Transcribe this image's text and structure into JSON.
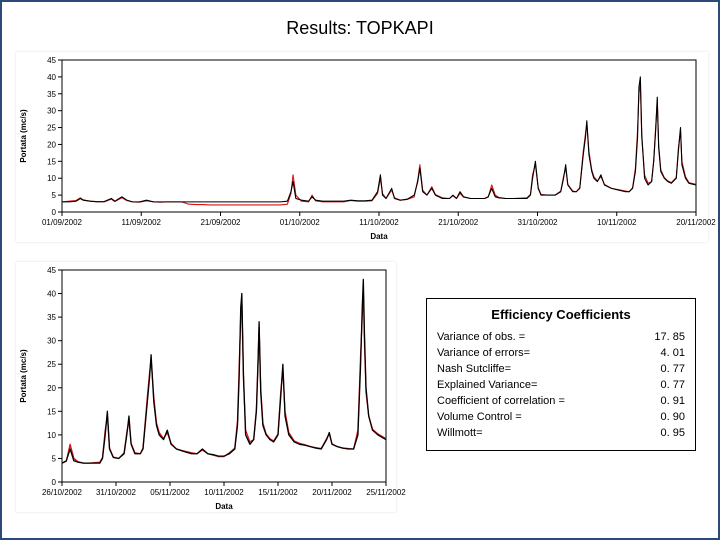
{
  "page": {
    "title": "Results: TOPKAPI"
  },
  "palette": {
    "series_obs": "#000000",
    "series_sim": "#d51414",
    "grid_color": "#000000",
    "plot_border": "#000000",
    "background": "#ffffff"
  },
  "chart_top": {
    "type": "line",
    "ylabel": "Portata (mc/s)",
    "xlabel": "Data",
    "xlim": [
      0,
      9
    ],
    "ylim": [
      0,
      45
    ],
    "ytick_step": 5,
    "xtick_labels": [
      "01/09/2002",
      "11/09/2002",
      "21/09/2002",
      "01/10/2002",
      "11/10/2002",
      "21/10/2002",
      "31/10/2002",
      "10/11/2002",
      "20/11/2002"
    ],
    "line_width": 1.1,
    "series_obs": [
      [
        0.0,
        3
      ],
      [
        0.1,
        3
      ],
      [
        0.2,
        3.2
      ],
      [
        0.26,
        4
      ],
      [
        0.3,
        3.5
      ],
      [
        0.4,
        3.2
      ],
      [
        0.5,
        3
      ],
      [
        0.6,
        3.1
      ],
      [
        0.7,
        4
      ],
      [
        0.75,
        3.2
      ],
      [
        0.85,
        4.5
      ],
      [
        0.92,
        3.5
      ],
      [
        1.0,
        3
      ],
      [
        1.1,
        3
      ],
      [
        1.2,
        3.5
      ],
      [
        1.3,
        3
      ],
      [
        1.4,
        3
      ],
      [
        1.5,
        3
      ],
      [
        1.6,
        3
      ],
      [
        1.7,
        3
      ],
      [
        1.8,
        3
      ],
      [
        1.9,
        3
      ],
      [
        2.0,
        3
      ],
      [
        2.1,
        3
      ],
      [
        2.2,
        3
      ],
      [
        2.3,
        3
      ],
      [
        2.4,
        3
      ],
      [
        2.5,
        3
      ],
      [
        2.6,
        3
      ],
      [
        2.7,
        3
      ],
      [
        2.8,
        3
      ],
      [
        2.9,
        3
      ],
      [
        3.0,
        3
      ],
      [
        3.1,
        3
      ],
      [
        3.2,
        3.2
      ],
      [
        3.25,
        6
      ],
      [
        3.28,
        9
      ],
      [
        3.32,
        4
      ],
      [
        3.4,
        3.5
      ],
      [
        3.5,
        3.2
      ],
      [
        3.55,
        4.5
      ],
      [
        3.6,
        3.5
      ],
      [
        3.7,
        3.2
      ],
      [
        3.8,
        3.2
      ],
      [
        3.9,
        3.2
      ],
      [
        4.0,
        3.2
      ],
      [
        4.1,
        3.5
      ],
      [
        4.2,
        3.3
      ],
      [
        4.3,
        3.3
      ],
      [
        4.4,
        3.5
      ],
      [
        4.48,
        6
      ],
      [
        4.52,
        11
      ],
      [
        4.55,
        5
      ],
      [
        4.6,
        4
      ],
      [
        4.68,
        7
      ],
      [
        4.72,
        4
      ],
      [
        4.8,
        3.5
      ],
      [
        4.9,
        3.8
      ],
      [
        5.0,
        5
      ],
      [
        5.05,
        9
      ],
      [
        5.08,
        13
      ],
      [
        5.12,
        6
      ],
      [
        5.18,
        5
      ],
      [
        5.25,
        7
      ],
      [
        5.3,
        5
      ],
      [
        5.4,
        4
      ],
      [
        5.5,
        4
      ],
      [
        5.55,
        5
      ],
      [
        5.6,
        4
      ],
      [
        5.65,
        6
      ],
      [
        5.7,
        4.5
      ],
      [
        5.8,
        4
      ],
      [
        5.9,
        4
      ],
      [
        6.0,
        4
      ],
      [
        6.05,
        4.5
      ],
      [
        6.1,
        7
      ],
      [
        6.15,
        4.5
      ],
      [
        6.2,
        4.2
      ],
      [
        6.3,
        4
      ],
      [
        6.4,
        4
      ],
      [
        6.5,
        4
      ],
      [
        6.6,
        4
      ],
      [
        6.65,
        5
      ],
      [
        6.68,
        10
      ],
      [
        6.72,
        15
      ],
      [
        6.76,
        7
      ],
      [
        6.8,
        5
      ],
      [
        6.9,
        5
      ],
      [
        7.0,
        5
      ],
      [
        7.08,
        6
      ],
      [
        7.12,
        10
      ],
      [
        7.15,
        14
      ],
      [
        7.18,
        8
      ],
      [
        7.25,
        6
      ],
      [
        7.3,
        6
      ],
      [
        7.35,
        7
      ],
      [
        7.4,
        17
      ],
      [
        7.43,
        22
      ],
      [
        7.45,
        27
      ],
      [
        7.48,
        17
      ],
      [
        7.52,
        12
      ],
      [
        7.55,
        10
      ],
      [
        7.6,
        9
      ],
      [
        7.65,
        11
      ],
      [
        7.7,
        8
      ],
      [
        7.8,
        7
      ],
      [
        7.9,
        6.5
      ],
      [
        8.0,
        6
      ],
      [
        8.05,
        6
      ],
      [
        8.1,
        7
      ],
      [
        8.14,
        12
      ],
      [
        8.17,
        22
      ],
      [
        8.19,
        37
      ],
      [
        8.21,
        40
      ],
      [
        8.23,
        23
      ],
      [
        8.27,
        10
      ],
      [
        8.32,
        8
      ],
      [
        8.37,
        9
      ],
      [
        8.4,
        15
      ],
      [
        8.43,
        25
      ],
      [
        8.45,
        34
      ],
      [
        8.47,
        19
      ],
      [
        8.5,
        12
      ],
      [
        8.55,
        10
      ],
      [
        8.6,
        9
      ],
      [
        8.65,
        8.5
      ],
      [
        8.72,
        10
      ],
      [
        8.75,
        18
      ],
      [
        8.78,
        25
      ],
      [
        8.8,
        14
      ],
      [
        8.85,
        10
      ],
      [
        8.9,
        8.5
      ],
      [
        9.0,
        8
      ]
    ],
    "series_sim": [
      [
        0.0,
        3
      ],
      [
        0.1,
        3.2
      ],
      [
        0.2,
        3.4
      ],
      [
        0.26,
        4.2
      ],
      [
        0.3,
        3.6
      ],
      [
        0.4,
        3.2
      ],
      [
        0.5,
        3.1
      ],
      [
        0.6,
        3
      ],
      [
        0.7,
        3.8
      ],
      [
        0.75,
        3.1
      ],
      [
        0.85,
        4.2
      ],
      [
        0.92,
        3.4
      ],
      [
        1.0,
        3
      ],
      [
        1.1,
        2.9
      ],
      [
        1.2,
        3.3
      ],
      [
        1.3,
        3
      ],
      [
        1.4,
        2.9
      ],
      [
        1.5,
        3
      ],
      [
        1.6,
        3
      ],
      [
        1.7,
        3
      ],
      [
        1.8,
        2.3
      ],
      [
        1.9,
        2.2
      ],
      [
        2.0,
        2.2
      ],
      [
        2.1,
        2.1
      ],
      [
        2.2,
        2.1
      ],
      [
        2.3,
        2.1
      ],
      [
        2.4,
        2.1
      ],
      [
        2.5,
        2.1
      ],
      [
        2.6,
        2.1
      ],
      [
        2.7,
        2.1
      ],
      [
        2.8,
        2.1
      ],
      [
        2.9,
        2.1
      ],
      [
        3.0,
        2.1
      ],
      [
        3.1,
        2.1
      ],
      [
        3.2,
        2.3
      ],
      [
        3.25,
        5.5
      ],
      [
        3.28,
        11
      ],
      [
        3.32,
        5
      ],
      [
        3.4,
        3.2
      ],
      [
        3.5,
        3
      ],
      [
        3.55,
        5
      ],
      [
        3.6,
        3.3
      ],
      [
        3.7,
        3
      ],
      [
        3.8,
        3
      ],
      [
        3.9,
        3
      ],
      [
        4.0,
        3
      ],
      [
        4.1,
        3.4
      ],
      [
        4.2,
        3.2
      ],
      [
        4.3,
        3.2
      ],
      [
        4.4,
        3.3
      ],
      [
        4.48,
        5.5
      ],
      [
        4.52,
        10
      ],
      [
        4.55,
        5.5
      ],
      [
        4.6,
        4
      ],
      [
        4.68,
        6.5
      ],
      [
        4.72,
        4.2
      ],
      [
        4.8,
        3.5
      ],
      [
        4.9,
        3.7
      ],
      [
        5.0,
        4.5
      ],
      [
        5.05,
        9.5
      ],
      [
        5.08,
        14
      ],
      [
        5.12,
        6.5
      ],
      [
        5.18,
        5
      ],
      [
        5.25,
        7.5
      ],
      [
        5.3,
        5.2
      ],
      [
        5.4,
        4.2
      ],
      [
        5.5,
        4
      ],
      [
        5.55,
        4.8
      ],
      [
        5.6,
        4
      ],
      [
        5.65,
        5.5
      ],
      [
        5.7,
        4.4
      ],
      [
        5.8,
        4
      ],
      [
        5.9,
        4
      ],
      [
        6.0,
        4
      ],
      [
        6.05,
        4.4
      ],
      [
        6.1,
        8
      ],
      [
        6.15,
        5
      ],
      [
        6.2,
        4.3
      ],
      [
        6.3,
        4
      ],
      [
        6.4,
        4
      ],
      [
        6.5,
        4.1
      ],
      [
        6.6,
        4.2
      ],
      [
        6.65,
        5.2
      ],
      [
        6.68,
        11
      ],
      [
        6.72,
        14
      ],
      [
        6.76,
        7.2
      ],
      [
        6.8,
        5.2
      ],
      [
        6.9,
        5
      ],
      [
        7.0,
        5
      ],
      [
        7.08,
        6.2
      ],
      [
        7.12,
        10.5
      ],
      [
        7.15,
        13
      ],
      [
        7.18,
        8.2
      ],
      [
        7.25,
        6.2
      ],
      [
        7.3,
        6
      ],
      [
        7.35,
        7.2
      ],
      [
        7.4,
        18
      ],
      [
        7.43,
        23
      ],
      [
        7.45,
        26
      ],
      [
        7.48,
        18
      ],
      [
        7.52,
        12.5
      ],
      [
        7.55,
        10.5
      ],
      [
        7.6,
        9.2
      ],
      [
        7.65,
        10.5
      ],
      [
        7.7,
        8.2
      ],
      [
        7.8,
        7
      ],
      [
        7.9,
        6.6
      ],
      [
        8.0,
        6.2
      ],
      [
        8.05,
        6
      ],
      [
        8.1,
        7.2
      ],
      [
        8.14,
        13
      ],
      [
        8.17,
        24
      ],
      [
        8.19,
        35
      ],
      [
        8.21,
        38
      ],
      [
        8.23,
        22
      ],
      [
        8.27,
        11
      ],
      [
        8.32,
        8.5
      ],
      [
        8.37,
        9
      ],
      [
        8.4,
        15.5
      ],
      [
        8.43,
        26
      ],
      [
        8.45,
        33
      ],
      [
        8.47,
        20
      ],
      [
        8.5,
        12.5
      ],
      [
        8.55,
        10.2
      ],
      [
        8.6,
        9.2
      ],
      [
        8.65,
        8.7
      ],
      [
        8.72,
        10.2
      ],
      [
        8.75,
        19
      ],
      [
        8.78,
        24
      ],
      [
        8.8,
        15
      ],
      [
        8.85,
        10.5
      ],
      [
        8.9,
        8.7
      ],
      [
        9.0,
        8.2
      ]
    ]
  },
  "chart_bottom": {
    "type": "line",
    "ylabel": "Portata (mc/s)",
    "xlabel": "Data",
    "xlim": [
      0,
      6
    ],
    "ylim": [
      0,
      45
    ],
    "ytick_step": 5,
    "xtick_labels": [
      "26/10/2002",
      "31/10/2002",
      "05/11/2002",
      "10/11/2002",
      "15/11/2002",
      "20/11/2002",
      "25/11/2002"
    ],
    "line_width": 1.3,
    "series_obs": [
      [
        0.0,
        4
      ],
      [
        0.08,
        4.5
      ],
      [
        0.15,
        7
      ],
      [
        0.22,
        4.5
      ],
      [
        0.3,
        4.2
      ],
      [
        0.4,
        4
      ],
      [
        0.5,
        4
      ],
      [
        0.6,
        4
      ],
      [
        0.7,
        4
      ],
      [
        0.75,
        5
      ],
      [
        0.8,
        10
      ],
      [
        0.84,
        15
      ],
      [
        0.88,
        7
      ],
      [
        0.95,
        5.2
      ],
      [
        1.05,
        5
      ],
      [
        1.15,
        6
      ],
      [
        1.2,
        10
      ],
      [
        1.24,
        14
      ],
      [
        1.28,
        8
      ],
      [
        1.35,
        6
      ],
      [
        1.45,
        6
      ],
      [
        1.5,
        7
      ],
      [
        1.58,
        17
      ],
      [
        1.62,
        22
      ],
      [
        1.65,
        27
      ],
      [
        1.7,
        17
      ],
      [
        1.75,
        12
      ],
      [
        1.8,
        10
      ],
      [
        1.88,
        9
      ],
      [
        1.95,
        11
      ],
      [
        2.02,
        8
      ],
      [
        2.12,
        7
      ],
      [
        2.25,
        6.5
      ],
      [
        2.4,
        6
      ],
      [
        2.5,
        6
      ],
      [
        2.6,
        7
      ],
      [
        2.7,
        6
      ],
      [
        2.8,
        5.8
      ],
      [
        2.9,
        5.5
      ],
      [
        3.0,
        5.5
      ],
      [
        3.1,
        6
      ],
      [
        3.2,
        7
      ],
      [
        3.25,
        12
      ],
      [
        3.28,
        22
      ],
      [
        3.31,
        37
      ],
      [
        3.33,
        40
      ],
      [
        3.36,
        23
      ],
      [
        3.4,
        10
      ],
      [
        3.48,
        8
      ],
      [
        3.55,
        9
      ],
      [
        3.6,
        15
      ],
      [
        3.63,
        25
      ],
      [
        3.65,
        34
      ],
      [
        3.68,
        19
      ],
      [
        3.72,
        12
      ],
      [
        3.78,
        10
      ],
      [
        3.85,
        9
      ],
      [
        3.92,
        8.5
      ],
      [
        4.0,
        10
      ],
      [
        4.05,
        18
      ],
      [
        4.09,
        25
      ],
      [
        4.13,
        14
      ],
      [
        4.2,
        10
      ],
      [
        4.3,
        8.5
      ],
      [
        4.4,
        8
      ],
      [
        4.5,
        7.8
      ],
      [
        4.6,
        7.5
      ],
      [
        4.7,
        7.2
      ],
      [
        4.8,
        7
      ],
      [
        4.9,
        9
      ],
      [
        4.95,
        10.5
      ],
      [
        5.0,
        8
      ],
      [
        5.1,
        7.5
      ],
      [
        5.2,
        7.2
      ],
      [
        5.3,
        7
      ],
      [
        5.4,
        7
      ],
      [
        5.48,
        10
      ],
      [
        5.53,
        25
      ],
      [
        5.56,
        37
      ],
      [
        5.58,
        43
      ],
      [
        5.6,
        32
      ],
      [
        5.63,
        20
      ],
      [
        5.68,
        14
      ],
      [
        5.75,
        11
      ],
      [
        5.85,
        10
      ],
      [
        6.0,
        9
      ]
    ],
    "series_sim": [
      [
        0.0,
        4
      ],
      [
        0.08,
        4.4
      ],
      [
        0.15,
        8
      ],
      [
        0.22,
        5
      ],
      [
        0.3,
        4.3
      ],
      [
        0.4,
        4
      ],
      [
        0.5,
        4
      ],
      [
        0.6,
        4.1
      ],
      [
        0.7,
        4.2
      ],
      [
        0.75,
        5.2
      ],
      [
        0.8,
        11
      ],
      [
        0.84,
        14
      ],
      [
        0.88,
        7.2
      ],
      [
        0.95,
        5.3
      ],
      [
        1.05,
        5
      ],
      [
        1.15,
        6.2
      ],
      [
        1.2,
        10.5
      ],
      [
        1.24,
        13
      ],
      [
        1.28,
        8.2
      ],
      [
        1.35,
        6.2
      ],
      [
        1.45,
        6
      ],
      [
        1.5,
        7.2
      ],
      [
        1.58,
        18
      ],
      [
        1.62,
        23
      ],
      [
        1.65,
        26
      ],
      [
        1.7,
        18
      ],
      [
        1.75,
        12.5
      ],
      [
        1.8,
        10.5
      ],
      [
        1.88,
        9.2
      ],
      [
        1.95,
        10.5
      ],
      [
        2.02,
        8.2
      ],
      [
        2.12,
        7
      ],
      [
        2.25,
        6.6
      ],
      [
        2.4,
        6.2
      ],
      [
        2.5,
        6
      ],
      [
        2.6,
        6.8
      ],
      [
        2.7,
        6
      ],
      [
        2.8,
        5.7
      ],
      [
        2.9,
        5.4
      ],
      [
        3.0,
        5.4
      ],
      [
        3.1,
        6.2
      ],
      [
        3.2,
        7.2
      ],
      [
        3.25,
        13
      ],
      [
        3.28,
        24
      ],
      [
        3.31,
        35
      ],
      [
        3.33,
        38
      ],
      [
        3.36,
        22
      ],
      [
        3.4,
        11
      ],
      [
        3.48,
        8.5
      ],
      [
        3.55,
        9
      ],
      [
        3.6,
        15.5
      ],
      [
        3.63,
        26
      ],
      [
        3.65,
        33
      ],
      [
        3.68,
        20
      ],
      [
        3.72,
        12.5
      ],
      [
        3.78,
        10.2
      ],
      [
        3.85,
        9.2
      ],
      [
        3.92,
        8.7
      ],
      [
        4.0,
        10.2
      ],
      [
        4.05,
        19
      ],
      [
        4.09,
        24
      ],
      [
        4.13,
        15
      ],
      [
        4.2,
        10.5
      ],
      [
        4.3,
        8.7
      ],
      [
        4.4,
        8.2
      ],
      [
        4.5,
        7.9
      ],
      [
        4.6,
        7.5
      ],
      [
        4.7,
        7.3
      ],
      [
        4.8,
        7.1
      ],
      [
        4.9,
        9.2
      ],
      [
        4.95,
        10.2
      ],
      [
        5.0,
        8.1
      ],
      [
        5.1,
        7.5
      ],
      [
        5.2,
        7.2
      ],
      [
        5.3,
        7.1
      ],
      [
        5.4,
        7
      ],
      [
        5.48,
        11
      ],
      [
        5.53,
        27
      ],
      [
        5.56,
        35
      ],
      [
        5.58,
        41
      ],
      [
        5.6,
        30
      ],
      [
        5.63,
        19
      ],
      [
        5.68,
        14
      ],
      [
        5.75,
        11.2
      ],
      [
        5.85,
        10.2
      ],
      [
        6.0,
        9.2
      ]
    ]
  },
  "efficiency": {
    "title": "Efficiency Coefficients",
    "rows": [
      {
        "label": "Variance of obs. =",
        "value": "17. 85"
      },
      {
        "label": "Variance of  errors=",
        "value": "4. 01"
      },
      {
        "label": "Nash Sutcliffe=",
        "value": "0. 77"
      },
      {
        "label": "Explained Variance=",
        "value": "0. 77"
      },
      {
        "label": "Coefficient of correlation =",
        "value": "0. 91"
      },
      {
        "label": "Volume Control =",
        "value": "0. 90"
      },
      {
        "label": "Willmott=",
        "value": "0. 95"
      }
    ]
  }
}
